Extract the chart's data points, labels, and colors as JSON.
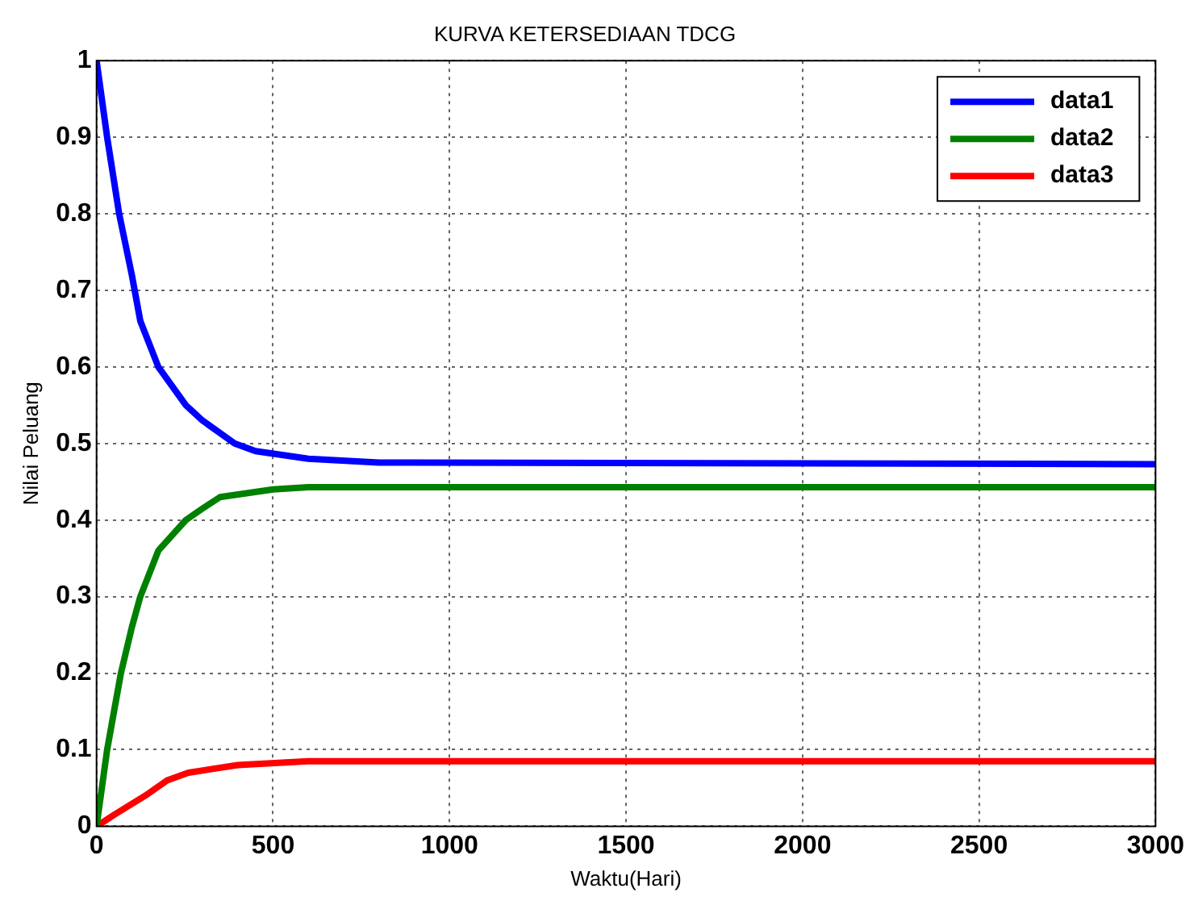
{
  "chart_data": {
    "type": "line",
    "title": "KURVA KETERSEDIAAN TDCG",
    "xlabel": "Waktu(Hari)",
    "ylabel": "Nilai Peluang",
    "xlim": [
      0,
      3000
    ],
    "xticks": [
      0,
      500,
      1000,
      1500,
      2000,
      2500,
      3000
    ],
    "ylim": [
      0,
      1
    ],
    "yticks": [
      0,
      0.1,
      0.2,
      0.3,
      0.4,
      0.5,
      0.6,
      0.7,
      0.8,
      0.9,
      1
    ],
    "grid": true,
    "legend": "top right",
    "marker": "none",
    "line_style": "solid",
    "series": [
      {
        "name": "data1",
        "color": "#0000ff",
        "x": [
          0,
          30,
          64,
          100,
          124,
          175,
          253,
          300,
          391,
          450,
          600,
          800,
          3000
        ],
        "values": [
          1,
          0.9,
          0.8,
          0.72,
          0.66,
          0.6,
          0.55,
          0.53,
          0.5,
          0.49,
          0.48,
          0.475,
          0.473
        ]
      },
      {
        "name": "data2",
        "color": "#008000",
        "x": [
          0,
          30,
          69,
          100,
          124,
          175,
          253,
          300,
          350,
          500,
          600,
          3000
        ],
        "values": [
          0,
          0.1,
          0.2,
          0.26,
          0.3,
          0.36,
          0.4,
          0.415,
          0.43,
          0.44,
          0.443,
          0.443
        ]
      },
      {
        "name": "data3",
        "color": "#ff0000",
        "x": [
          0,
          50,
          138,
          200,
          260,
          400,
          600,
          3000
        ],
        "values": [
          0,
          0.015,
          0.04,
          0.06,
          0.07,
          0.08,
          0.085,
          0.085
        ]
      }
    ]
  }
}
